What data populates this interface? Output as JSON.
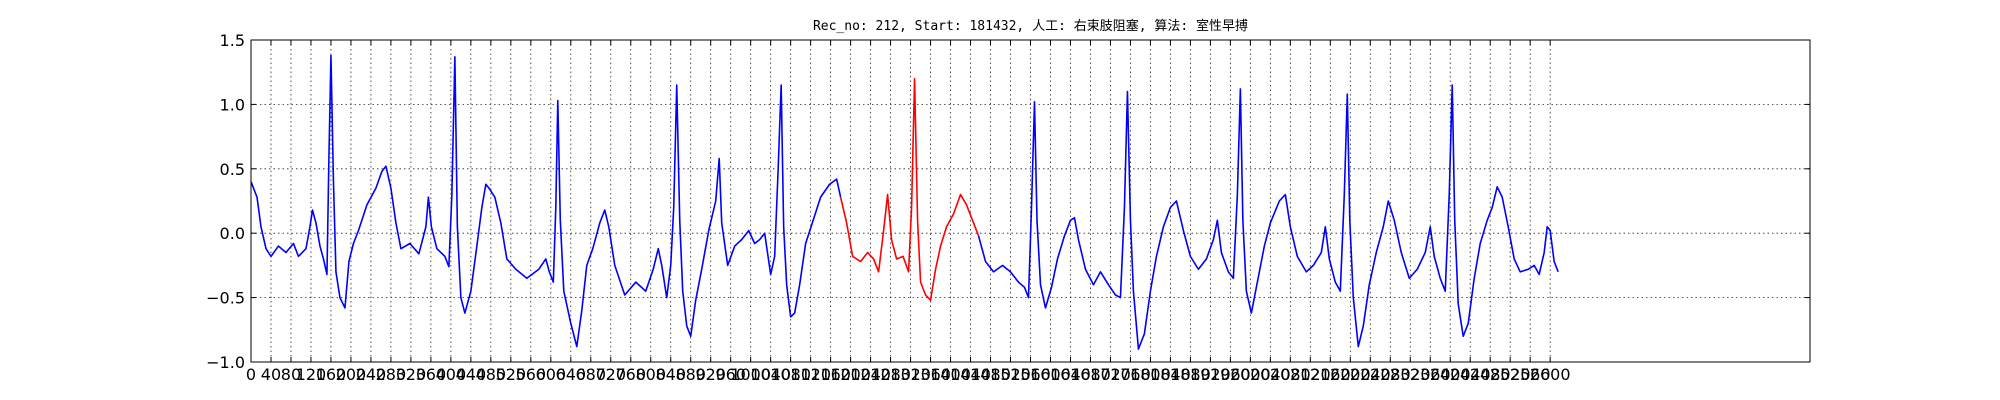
{
  "chart_data": {
    "type": "line",
    "title": "Rec_no: 212, Start: 181432, 人工: 右束肢阻塞, 算法: 室性早搏",
    "xlabel": "",
    "ylabel": "",
    "xlim": [
      0,
      3120
    ],
    "ylim": [
      -1.0,
      1.5
    ],
    "grid": true,
    "x_ticks": [
      0,
      40,
      80,
      120,
      160,
      200,
      240,
      280,
      320,
      360,
      400,
      440,
      480,
      520,
      560,
      600,
      640,
      680,
      720,
      760,
      800,
      840,
      880,
      920,
      960,
      1000,
      1040,
      1080,
      1120,
      1160,
      1200,
      1240,
      1280,
      1320,
      1360,
      1400,
      1440,
      1480,
      1520,
      1560,
      1600,
      1640,
      1680,
      1720,
      1760,
      1800,
      1840,
      1880,
      1920,
      1960,
      2000,
      2040,
      2080,
      2120,
      2160,
      2200,
      2240,
      2280,
      2320,
      2360,
      2400,
      2440,
      2480,
      2520,
      2560,
      2600
    ],
    "y_ticks": [
      -1.0,
      -0.5,
      0.0,
      0.5,
      1.0,
      1.5
    ],
    "y_tick_labels": [
      "−1.0",
      "−0.5",
      "0.0",
      "0.5",
      "1.0",
      "1.5"
    ],
    "series": [
      {
        "color": "#0000ff",
        "points": [
          [
            0,
            0.4
          ],
          [
            12,
            0.28
          ],
          [
            20,
            0.05
          ],
          [
            30,
            -0.12
          ],
          [
            40,
            -0.18
          ],
          [
            55,
            -0.1
          ],
          [
            70,
            -0.15
          ],
          [
            85,
            -0.08
          ],
          [
            95,
            -0.18
          ],
          [
            110,
            -0.12
          ],
          [
            118,
            0.05
          ],
          [
            123,
            0.18
          ],
          [
            130,
            0.08
          ],
          [
            138,
            -0.1
          ],
          [
            145,
            -0.2
          ],
          [
            152,
            -0.32
          ],
          [
            156,
            0.6
          ],
          [
            160,
            1.38
          ],
          [
            165,
            0.4
          ],
          [
            170,
            -0.3
          ],
          [
            178,
            -0.5
          ],
          [
            188,
            -0.58
          ],
          [
            196,
            -0.22
          ],
          [
            205,
            -0.08
          ],
          [
            215,
            0.02
          ],
          [
            232,
            0.22
          ],
          [
            250,
            0.35
          ],
          [
            262,
            0.48
          ],
          [
            270,
            0.52
          ],
          [
            280,
            0.35
          ],
          [
            290,
            0.08
          ],
          [
            300,
            -0.12
          ],
          [
            318,
            -0.08
          ],
          [
            336,
            -0.16
          ],
          [
            350,
            0.05
          ],
          [
            355,
            0.28
          ],
          [
            361,
            0.05
          ],
          [
            372,
            -0.12
          ],
          [
            388,
            -0.18
          ],
          [
            396,
            -0.26
          ],
          [
            402,
            0.3
          ],
          [
            408,
            1.37
          ],
          [
            413,
            0.05
          ],
          [
            420,
            -0.5
          ],
          [
            428,
            -0.62
          ],
          [
            440,
            -0.45
          ],
          [
            452,
            -0.1
          ],
          [
            462,
            0.2
          ],
          [
            470,
            0.38
          ],
          [
            478,
            0.34
          ],
          [
            488,
            0.28
          ],
          [
            500,
            0.08
          ],
          [
            512,
            -0.2
          ],
          [
            530,
            -0.28
          ],
          [
            552,
            -0.35
          ],
          [
            576,
            -0.28
          ],
          [
            590,
            -0.2
          ],
          [
            597,
            -0.3
          ],
          [
            605,
            -0.38
          ],
          [
            610,
            0.2
          ],
          [
            614,
            1.03
          ],
          [
            619,
            0.1
          ],
          [
            626,
            -0.45
          ],
          [
            640,
            -0.7
          ],
          [
            652,
            -0.88
          ],
          [
            662,
            -0.6
          ],
          [
            672,
            -0.25
          ],
          [
            684,
            -0.12
          ],
          [
            698,
            0.08
          ],
          [
            708,
            0.18
          ],
          [
            716,
            0.05
          ],
          [
            728,
            -0.25
          ],
          [
            748,
            -0.48
          ],
          [
            770,
            -0.38
          ],
          [
            790,
            -0.45
          ],
          [
            805,
            -0.28
          ],
          [
            815,
            -0.12
          ],
          [
            822,
            -0.25
          ],
          [
            832,
            -0.5
          ],
          [
            840,
            -0.25
          ],
          [
            846,
            0.2
          ],
          [
            852,
            1.15
          ],
          [
            858,
            0.1
          ],
          [
            864,
            -0.45
          ],
          [
            872,
            -0.72
          ],
          [
            880,
            -0.8
          ],
          [
            890,
            -0.52
          ],
          [
            902,
            -0.28
          ],
          [
            916,
            0.02
          ],
          [
            930,
            0.25
          ],
          [
            937,
            0.58
          ],
          [
            942,
            0.08
          ],
          [
            954,
            -0.25
          ],
          [
            968,
            -0.1
          ],
          [
            982,
            -0.05
          ],
          [
            996,
            0.02
          ],
          [
            1008,
            -0.08
          ],
          [
            1018,
            -0.05
          ],
          [
            1028,
            0.0
          ],
          [
            1040,
            -0.32
          ],
          [
            1048,
            -0.18
          ],
          [
            1055,
            0.5
          ],
          [
            1061,
            1.15
          ],
          [
            1066,
            0.05
          ],
          [
            1072,
            -0.4
          ],
          [
            1080,
            -0.65
          ],
          [
            1088,
            -0.62
          ],
          [
            1098,
            -0.4
          ],
          [
            1110,
            -0.08
          ],
          [
            1125,
            0.1
          ],
          [
            1140,
            0.28
          ],
          [
            1158,
            0.38
          ],
          [
            1172,
            0.42
          ],
          [
            1180,
            0.28
          ]
        ]
      },
      {
        "color": "#ff0000",
        "points": [
          [
            1180,
            0.28
          ],
          [
            1192,
            0.08
          ],
          [
            1204,
            -0.18
          ],
          [
            1220,
            -0.22
          ],
          [
            1234,
            -0.15
          ],
          [
            1246,
            -0.2
          ],
          [
            1256,
            -0.3
          ],
          [
            1266,
            0.02
          ],
          [
            1274,
            0.3
          ],
          [
            1282,
            -0.05
          ],
          [
            1292,
            -0.2
          ],
          [
            1305,
            -0.18
          ],
          [
            1316,
            -0.3
          ],
          [
            1322,
            0.2
          ],
          [
            1328,
            1.2
          ],
          [
            1334,
            0.1
          ],
          [
            1340,
            -0.38
          ],
          [
            1350,
            -0.48
          ],
          [
            1360,
            -0.52
          ],
          [
            1370,
            -0.28
          ],
          [
            1380,
            -0.1
          ],
          [
            1392,
            0.05
          ],
          [
            1406,
            0.15
          ],
          [
            1420,
            0.3
          ],
          [
            1432,
            0.22
          ],
          [
            1444,
            0.1
          ],
          [
            1456,
            -0.02
          ]
        ]
      },
      {
        "color": "#0000ff",
        "points": [
          [
            1456,
            -0.02
          ],
          [
            1470,
            -0.22
          ],
          [
            1486,
            -0.3
          ],
          [
            1504,
            -0.25
          ],
          [
            1520,
            -0.3
          ],
          [
            1536,
            -0.38
          ],
          [
            1548,
            -0.42
          ],
          [
            1556,
            -0.5
          ],
          [
            1562,
            0.2
          ],
          [
            1568,
            1.02
          ],
          [
            1573,
            0.1
          ],
          [
            1580,
            -0.4
          ],
          [
            1590,
            -0.58
          ],
          [
            1602,
            -0.42
          ],
          [
            1614,
            -0.2
          ],
          [
            1628,
            -0.02
          ],
          [
            1640,
            0.1
          ],
          [
            1648,
            0.12
          ],
          [
            1656,
            -0.05
          ],
          [
            1670,
            -0.28
          ],
          [
            1686,
            -0.4
          ],
          [
            1700,
            -0.3
          ],
          [
            1716,
            -0.4
          ],
          [
            1730,
            -0.48
          ],
          [
            1740,
            -0.5
          ],
          [
            1748,
            0.2
          ],
          [
            1754,
            1.1
          ],
          [
            1760,
            0.1
          ],
          [
            1766,
            -0.45
          ],
          [
            1776,
            -0.9
          ],
          [
            1788,
            -0.78
          ],
          [
            1800,
            -0.45
          ],
          [
            1812,
            -0.18
          ],
          [
            1826,
            0.05
          ],
          [
            1840,
            0.2
          ],
          [
            1852,
            0.25
          ],
          [
            1866,
            0.02
          ],
          [
            1880,
            -0.18
          ],
          [
            1896,
            -0.28
          ],
          [
            1912,
            -0.2
          ],
          [
            1926,
            -0.05
          ],
          [
            1934,
            0.1
          ],
          [
            1942,
            -0.15
          ],
          [
            1956,
            -0.3
          ],
          [
            1966,
            -0.35
          ],
          [
            1974,
            0.3
          ],
          [
            1980,
            1.12
          ],
          [
            1985,
            0.1
          ],
          [
            1992,
            -0.45
          ],
          [
            2002,
            -0.62
          ],
          [
            2014,
            -0.38
          ],
          [
            2028,
            -0.1
          ],
          [
            2040,
            0.08
          ],
          [
            2058,
            0.25
          ],
          [
            2070,
            0.3
          ],
          [
            2080,
            0.05
          ],
          [
            2094,
            -0.18
          ],
          [
            2112,
            -0.3
          ],
          [
            2126,
            -0.25
          ],
          [
            2142,
            -0.15
          ],
          [
            2150,
            0.05
          ],
          [
            2158,
            -0.2
          ],
          [
            2170,
            -0.38
          ],
          [
            2180,
            -0.45
          ],
          [
            2188,
            0.3
          ],
          [
            2194,
            1.08
          ],
          [
            2199,
            0.1
          ],
          [
            2206,
            -0.5
          ],
          [
            2216,
            -0.88
          ],
          [
            2226,
            -0.72
          ],
          [
            2238,
            -0.4
          ],
          [
            2252,
            -0.15
          ],
          [
            2266,
            0.05
          ],
          [
            2276,
            0.25
          ],
          [
            2288,
            0.1
          ],
          [
            2302,
            -0.15
          ],
          [
            2318,
            -0.35
          ],
          [
            2334,
            -0.28
          ],
          [
            2350,
            -0.15
          ],
          [
            2360,
            0.05
          ],
          [
            2368,
            -0.18
          ],
          [
            2380,
            -0.35
          ],
          [
            2390,
            -0.45
          ],
          [
            2398,
            0.3
          ],
          [
            2404,
            1.15
          ],
          [
            2409,
            0.1
          ],
          [
            2416,
            -0.55
          ],
          [
            2426,
            -0.8
          ],
          [
            2436,
            -0.7
          ],
          [
            2448,
            -0.35
          ],
          [
            2460,
            -0.08
          ],
          [
            2474,
            0.1
          ],
          [
            2484,
            0.2
          ],
          [
            2494,
            0.36
          ],
          [
            2504,
            0.28
          ],
          [
            2516,
            0.05
          ],
          [
            2528,
            -0.2
          ],
          [
            2540,
            -0.3
          ],
          [
            2556,
            -0.28
          ],
          [
            2568,
            -0.25
          ],
          [
            2578,
            -0.32
          ],
          [
            2588,
            -0.15
          ],
          [
            2594,
            0.05
          ],
          [
            2600,
            0.02
          ],
          [
            2608,
            -0.22
          ],
          [
            2616,
            -0.3
          ]
        ]
      }
    ]
  }
}
